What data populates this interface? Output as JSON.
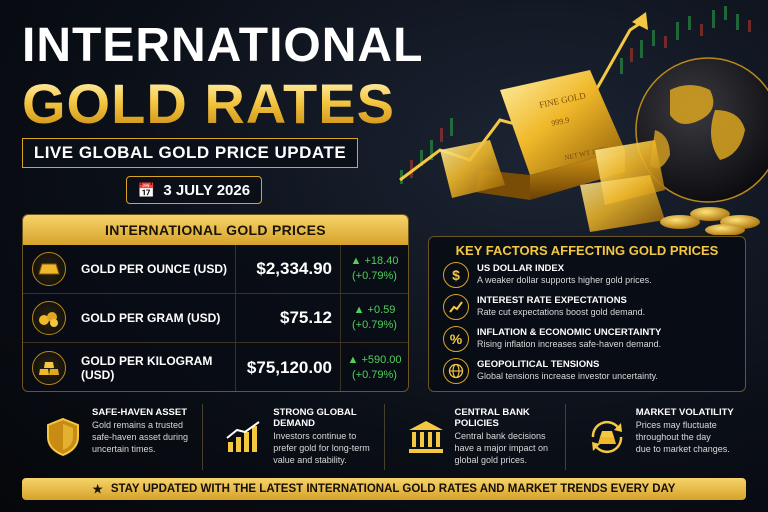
{
  "header": {
    "title_line1": "INTERNATIONAL",
    "title_line2": "GOLD RATES",
    "subtitle": "LIVE GLOBAL GOLD PRICE UPDATE",
    "date": "3 JULY 2026"
  },
  "bar_art": {
    "bar_text_top": "FINE GOLD",
    "bar_text_purity": "999.9",
    "bar_text_weight": "NET WT 1000g"
  },
  "prices": {
    "heading": "INTERNATIONAL GOLD PRICES",
    "rows": [
      {
        "label": "GOLD PER OUNCE (USD)",
        "value": "$2,334.90",
        "change": "+18.40",
        "pct": "(+0.79%)",
        "icon": "gold-bar-icon"
      },
      {
        "label": "GOLD PER GRAM (USD)",
        "value": "$75.12",
        "change": "+0.59",
        "pct": "(+0.79%)",
        "icon": "gold-nuggets-icon"
      },
      {
        "label": "GOLD PER KILOGRAM (USD)",
        "value": "$75,120.00",
        "change": "+590.00",
        "pct": "(+0.79%)",
        "icon": "gold-bars-stack-icon"
      }
    ]
  },
  "factors": {
    "heading": "KEY FACTORS AFFECTING GOLD PRICES",
    "items": [
      {
        "title": "US DOLLAR INDEX",
        "desc": "A weaker dollar supports higher gold prices.",
        "icon": "dollar-icon"
      },
      {
        "title": "INTEREST RATE EXPECTATIONS",
        "desc": "Rate cut expectations boost gold demand.",
        "icon": "chart-up-icon"
      },
      {
        "title": "INFLATION & ECONOMIC UNCERTAINTY",
        "desc": "Rising inflation increases safe-haven demand.",
        "icon": "percent-icon"
      },
      {
        "title": "GEOPOLITICAL TENSIONS",
        "desc": "Global tensions increase investor uncertainty.",
        "icon": "globe-icon"
      }
    ]
  },
  "features": [
    {
      "title": "SAFE-HAVEN ASSET",
      "lines": [
        "Gold remains a trusted",
        "safe-haven asset during",
        "uncertain times."
      ],
      "icon": "shield-icon"
    },
    {
      "title": "STRONG GLOBAL DEMAND",
      "lines": [
        "Investors continue to",
        "prefer gold for long-term",
        "value and stability."
      ],
      "icon": "growth-chart-icon"
    },
    {
      "title": "CENTRAL BANK POLICIES",
      "lines": [
        "Central bank decisions",
        "have a major impact on",
        "global gold prices."
      ],
      "icon": "bank-icon"
    },
    {
      "title": "MARKET VOLATILITY",
      "lines": [
        "Prices may fluctuate",
        "throughout the day",
        "due to market changes."
      ],
      "icon": "volatility-cycle-icon"
    }
  ],
  "banner": {
    "text": "STAY UPDATED WITH THE LATEST INTERNATIONAL GOLD RATES AND MARKET TRENDS EVERY DAY"
  },
  "colors": {
    "gold": "#f5c842",
    "gold_dark": "#d6a22a",
    "positive": "#4fd15a",
    "background": "#0a0e16"
  }
}
